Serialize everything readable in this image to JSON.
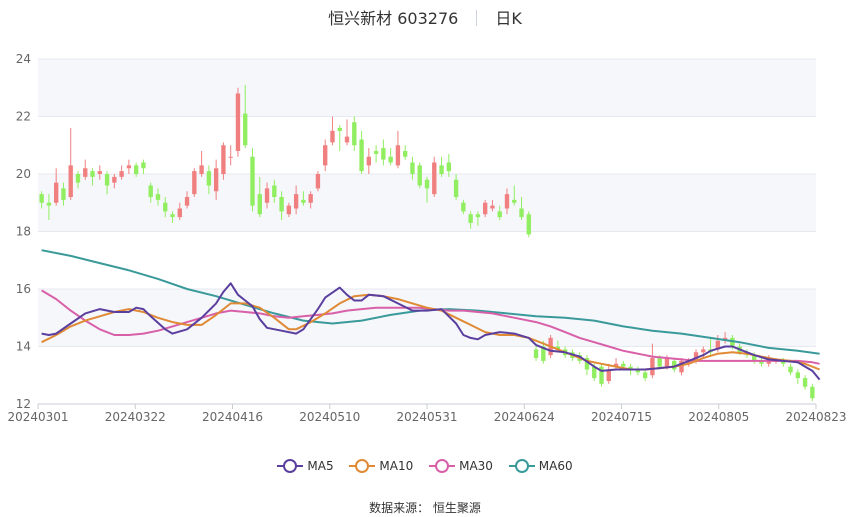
{
  "header": {
    "title": "恒兴新材 603276",
    "period": "日K"
  },
  "source": "数据来源： 恒生聚源",
  "colors": {
    "up": "#f08080",
    "down": "#90ee60",
    "ma5": "#5b3f9e",
    "ma10": "#e08a35",
    "ma30": "#d860a8",
    "ma60": "#3a9a9a",
    "grid": "#e6e9f0",
    "band": "#f5f7fb"
  },
  "chart_data": {
    "type": "candlestick",
    "ylim": [
      12,
      24
    ],
    "yticks": [
      12,
      14,
      16,
      18,
      20,
      22,
      24
    ],
    "xlabels": [
      "20240301",
      "20240322",
      "20240416",
      "20240510",
      "20240531",
      "20240624",
      "20240715",
      "20240805",
      "20240823"
    ],
    "legend": [
      "MA5",
      "MA10",
      "MA30",
      "MA60"
    ],
    "candles": [
      [
        19.3,
        19.0,
        19.4,
        18.8
      ],
      [
        19.0,
        18.9,
        19.3,
        18.4
      ],
      [
        19.0,
        19.7,
        20.2,
        18.9
      ],
      [
        19.5,
        19.1,
        19.7,
        18.9
      ],
      [
        19.2,
        20.3,
        21.6,
        19.1
      ],
      [
        20.0,
        19.7,
        20.1,
        19.5
      ],
      [
        19.9,
        20.2,
        20.5,
        19.8
      ],
      [
        20.1,
        19.9,
        20.2,
        19.6
      ],
      [
        20.0,
        20.1,
        20.3,
        19.8
      ],
      [
        20.0,
        19.6,
        20.1,
        19.3
      ],
      [
        19.7,
        19.9,
        20.0,
        19.5
      ],
      [
        19.9,
        20.1,
        20.3,
        19.8
      ],
      [
        20.2,
        20.3,
        20.5,
        20.0
      ],
      [
        20.3,
        20.0,
        20.4,
        19.9
      ],
      [
        20.4,
        20.2,
        20.5,
        20.0
      ],
      [
        19.6,
        19.2,
        19.7,
        19.0
      ],
      [
        19.3,
        19.1,
        19.5,
        18.9
      ],
      [
        19.0,
        18.7,
        19.2,
        18.5
      ],
      [
        18.6,
        18.5,
        18.7,
        18.3
      ],
      [
        18.5,
        18.8,
        19.0,
        18.4
      ],
      [
        18.9,
        19.2,
        19.4,
        18.8
      ],
      [
        19.3,
        20.1,
        20.2,
        19.2
      ],
      [
        20.0,
        20.3,
        20.8,
        19.9
      ],
      [
        20.1,
        19.6,
        20.3,
        19.3
      ],
      [
        19.4,
        20.2,
        20.5,
        19.1
      ],
      [
        20.0,
        21.0,
        21.1,
        19.8
      ],
      [
        20.6,
        20.6,
        21.0,
        20.3
      ],
      [
        20.8,
        22.8,
        23.0,
        20.6
      ],
      [
        22.1,
        21.0,
        23.1,
        20.9
      ],
      [
        20.6,
        18.9,
        20.9,
        18.7
      ],
      [
        19.3,
        18.6,
        19.9,
        18.5
      ],
      [
        19.0,
        19.5,
        19.7,
        18.8
      ],
      [
        19.6,
        19.2,
        19.8,
        19.0
      ],
      [
        19.2,
        18.7,
        19.4,
        18.4
      ],
      [
        18.6,
        18.9,
        19.0,
        18.5
      ],
      [
        18.8,
        19.3,
        19.6,
        18.6
      ],
      [
        19.1,
        19.0,
        19.4,
        18.9
      ],
      [
        19.0,
        19.3,
        19.4,
        18.8
      ],
      [
        19.5,
        20.0,
        20.1,
        19.4
      ],
      [
        20.3,
        21.0,
        21.2,
        20.1
      ],
      [
        21.1,
        21.5,
        22.0,
        21.0
      ],
      [
        21.6,
        21.5,
        21.7,
        20.8
      ],
      [
        21.1,
        21.3,
        21.9,
        21.0
      ],
      [
        21.8,
        21.0,
        22.0,
        20.8
      ],
      [
        21.2,
        20.1,
        21.5,
        20.0
      ],
      [
        20.3,
        20.6,
        20.9,
        20.0
      ],
      [
        20.8,
        20.7,
        21.0,
        20.4
      ],
      [
        20.9,
        20.5,
        21.2,
        20.3
      ],
      [
        20.6,
        20.4,
        20.9,
        20.3
      ],
      [
        20.3,
        21.0,
        21.5,
        20.2
      ],
      [
        20.8,
        20.6,
        21.0,
        20.5
      ],
      [
        20.4,
        20.0,
        20.6,
        19.8
      ],
      [
        20.3,
        19.6,
        20.4,
        19.5
      ],
      [
        19.8,
        19.5,
        19.9,
        19.0
      ],
      [
        19.3,
        20.4,
        20.6,
        19.2
      ],
      [
        20.3,
        20.0,
        20.6,
        19.9
      ],
      [
        20.4,
        20.1,
        20.7,
        19.9
      ],
      [
        19.8,
        19.2,
        20.0,
        19.1
      ],
      [
        19.0,
        18.7,
        19.1,
        18.6
      ],
      [
        18.6,
        18.3,
        18.7,
        18.1
      ],
      [
        18.6,
        18.5,
        18.7,
        18.2
      ],
      [
        18.6,
        19.0,
        19.1,
        18.5
      ],
      [
        18.8,
        18.9,
        19.1,
        18.7
      ],
      [
        18.7,
        18.5,
        18.9,
        18.4
      ],
      [
        18.8,
        19.3,
        19.5,
        18.6
      ],
      [
        19.1,
        19.0,
        19.6,
        18.9
      ],
      [
        18.8,
        18.5,
        19.2,
        18.4
      ],
      [
        18.6,
        17.9,
        18.7,
        17.8
      ],
      [
        13.9,
        13.6,
        14.1,
        13.5
      ],
      [
        14.0,
        13.5,
        14.2,
        13.4
      ],
      [
        13.7,
        14.3,
        14.4,
        13.6
      ],
      [
        14.0,
        13.9,
        14.2,
        13.8
      ],
      [
        13.9,
        13.7,
        14.0,
        13.6
      ],
      [
        13.8,
        13.6,
        13.9,
        13.5
      ],
      [
        13.7,
        13.5,
        13.8,
        13.4
      ],
      [
        13.6,
        13.2,
        13.7,
        13.0
      ],
      [
        13.3,
        12.9,
        13.4,
        12.8
      ],
      [
        13.3,
        12.7,
        13.4,
        12.6
      ],
      [
        12.8,
        13.2,
        13.4,
        12.7
      ],
      [
        13.3,
        13.4,
        13.6,
        13.2
      ],
      [
        13.4,
        13.3,
        13.5,
        13.2
      ],
      [
        13.3,
        13.2,
        13.4,
        13.0
      ],
      [
        13.2,
        13.1,
        13.3,
        13.0
      ],
      [
        13.1,
        12.9,
        13.2,
        12.8
      ],
      [
        13.0,
        13.6,
        14.1,
        12.9
      ],
      [
        13.6,
        13.3,
        13.7,
        13.2
      ],
      [
        13.3,
        13.6,
        13.7,
        13.2
      ],
      [
        13.5,
        13.2,
        13.6,
        13.1
      ],
      [
        13.1,
        13.5,
        13.6,
        13.0
      ],
      [
        13.4,
        13.5,
        13.6,
        13.3
      ],
      [
        13.5,
        13.8,
        13.9,
        13.4
      ],
      [
        13.8,
        13.9,
        14.0,
        13.6
      ],
      [
        13.9,
        13.8,
        14.3,
        13.7
      ],
      [
        13.9,
        14.2,
        14.4,
        13.8
      ],
      [
        14.2,
        14.3,
        14.5,
        14.1
      ],
      [
        14.3,
        14.0,
        14.4,
        13.9
      ],
      [
        14.0,
        13.8,
        14.1,
        13.7
      ],
      [
        13.8,
        13.7,
        13.9,
        13.6
      ],
      [
        13.7,
        13.5,
        13.8,
        13.4
      ],
      [
        13.5,
        13.4,
        13.6,
        13.3
      ],
      [
        13.4,
        13.6,
        13.7,
        13.3
      ],
      [
        13.5,
        13.5,
        13.6,
        13.4
      ],
      [
        13.5,
        13.4,
        13.6,
        13.3
      ],
      [
        13.3,
        13.1,
        13.4,
        13.0
      ],
      [
        13.1,
        12.9,
        13.2,
        12.7
      ],
      [
        12.9,
        12.6,
        13.0,
        12.5
      ],
      [
        12.6,
        12.2,
        12.7,
        12.1
      ]
    ],
    "ma5": [
      [
        0,
        14.45
      ],
      [
        1,
        14.4
      ],
      [
        2,
        14.45
      ],
      [
        4,
        14.8
      ],
      [
        6,
        15.15
      ],
      [
        8,
        15.3
      ],
      [
        10,
        15.2
      ],
      [
        12,
        15.2
      ],
      [
        13,
        15.35
      ],
      [
        14,
        15.3
      ],
      [
        15,
        15.05
      ],
      [
        17,
        14.6
      ],
      [
        18,
        14.45
      ],
      [
        20,
        14.6
      ],
      [
        22,
        15.0
      ],
      [
        24,
        15.5
      ],
      [
        25,
        15.9
      ],
      [
        26,
        16.2
      ],
      [
        27,
        15.8
      ],
      [
        28,
        15.6
      ],
      [
        29,
        15.4
      ],
      [
        30,
        14.95
      ],
      [
        31,
        14.65
      ],
      [
        33,
        14.55
      ],
      [
        35,
        14.45
      ],
      [
        36,
        14.6
      ],
      [
        38,
        15.3
      ],
      [
        39,
        15.7
      ],
      [
        41,
        16.05
      ],
      [
        42,
        15.8
      ],
      [
        43,
        15.6
      ],
      [
        44,
        15.6
      ],
      [
        45,
        15.8
      ],
      [
        47,
        15.75
      ],
      [
        49,
        15.5
      ],
      [
        51,
        15.25
      ],
      [
        53,
        15.25
      ],
      [
        55,
        15.3
      ],
      [
        57,
        14.8
      ],
      [
        58,
        14.4
      ],
      [
        59,
        14.3
      ],
      [
        60,
        14.25
      ],
      [
        61,
        14.4
      ],
      [
        63,
        14.5
      ],
      [
        65,
        14.45
      ],
      [
        67,
        14.3
      ],
      [
        68,
        14.05
      ],
      [
        69,
        13.95
      ],
      [
        70,
        13.85
      ],
      [
        72,
        13.8
      ],
      [
        74,
        13.65
      ],
      [
        76,
        13.3
      ],
      [
        77,
        13.15
      ],
      [
        79,
        13.2
      ],
      [
        81,
        13.2
      ],
      [
        83,
        13.2
      ],
      [
        85,
        13.25
      ],
      [
        87,
        13.3
      ],
      [
        89,
        13.5
      ],
      [
        91,
        13.7
      ],
      [
        92,
        13.85
      ],
      [
        94,
        14.0
      ],
      [
        95,
        14.0
      ],
      [
        96,
        13.9
      ],
      [
        98,
        13.7
      ],
      [
        100,
        13.55
      ],
      [
        102,
        13.5
      ],
      [
        104,
        13.45
      ],
      [
        105,
        13.3
      ],
      [
        106,
        13.15
      ],
      [
        107,
        12.85
      ]
    ],
    "ma10": [
      [
        0,
        14.15
      ],
      [
        2,
        14.4
      ],
      [
        4,
        14.7
      ],
      [
        6,
        14.9
      ],
      [
        8,
        15.05
      ],
      [
        10,
        15.2
      ],
      [
        12,
        15.3
      ],
      [
        14,
        15.2
      ],
      [
        16,
        15.0
      ],
      [
        18,
        14.85
      ],
      [
        20,
        14.75
      ],
      [
        22,
        14.75
      ],
      [
        24,
        15.1
      ],
      [
        26,
        15.5
      ],
      [
        28,
        15.5
      ],
      [
        30,
        15.35
      ],
      [
        32,
        15.0
      ],
      [
        34,
        14.6
      ],
      [
        35,
        14.6
      ],
      [
        37,
        14.85
      ],
      [
        39,
        15.15
      ],
      [
        41,
        15.5
      ],
      [
        43,
        15.75
      ],
      [
        45,
        15.8
      ],
      [
        47,
        15.75
      ],
      [
        49,
        15.65
      ],
      [
        51,
        15.5
      ],
      [
        53,
        15.35
      ],
      [
        55,
        15.25
      ],
      [
        57,
        15.0
      ],
      [
        59,
        14.75
      ],
      [
        61,
        14.5
      ],
      [
        63,
        14.4
      ],
      [
        65,
        14.4
      ],
      [
        67,
        14.3
      ],
      [
        69,
        14.1
      ],
      [
        71,
        13.9
      ],
      [
        73,
        13.7
      ],
      [
        75,
        13.5
      ],
      [
        77,
        13.4
      ],
      [
        79,
        13.3
      ],
      [
        81,
        13.2
      ],
      [
        83,
        13.2
      ],
      [
        85,
        13.25
      ],
      [
        87,
        13.3
      ],
      [
        89,
        13.4
      ],
      [
        91,
        13.6
      ],
      [
        93,
        13.75
      ],
      [
        95,
        13.8
      ],
      [
        97,
        13.75
      ],
      [
        99,
        13.65
      ],
      [
        101,
        13.55
      ],
      [
        103,
        13.5
      ],
      [
        105,
        13.4
      ],
      [
        107,
        13.2
      ]
    ],
    "ma30": [
      [
        0,
        15.95
      ],
      [
        2,
        15.65
      ],
      [
        4,
        15.25
      ],
      [
        6,
        14.9
      ],
      [
        8,
        14.6
      ],
      [
        10,
        14.4
      ],
      [
        12,
        14.4
      ],
      [
        14,
        14.45
      ],
      [
        16,
        14.55
      ],
      [
        18,
        14.7
      ],
      [
        20,
        14.85
      ],
      [
        22,
        15.0
      ],
      [
        24,
        15.15
      ],
      [
        26,
        15.25
      ],
      [
        28,
        15.2
      ],
      [
        30,
        15.15
      ],
      [
        32,
        15.05
      ],
      [
        34,
        15.0
      ],
      [
        36,
        15.05
      ],
      [
        38,
        15.1
      ],
      [
        40,
        15.15
      ],
      [
        42,
        15.25
      ],
      [
        44,
        15.3
      ],
      [
        46,
        15.35
      ],
      [
        48,
        15.35
      ],
      [
        50,
        15.35
      ],
      [
        52,
        15.35
      ],
      [
        54,
        15.3
      ],
      [
        56,
        15.25
      ],
      [
        58,
        15.25
      ],
      [
        60,
        15.2
      ],
      [
        62,
        15.15
      ],
      [
        64,
        15.05
      ],
      [
        66,
        14.95
      ],
      [
        68,
        14.85
      ],
      [
        70,
        14.7
      ],
      [
        72,
        14.5
      ],
      [
        74,
        14.3
      ],
      [
        76,
        14.15
      ],
      [
        78,
        14.0
      ],
      [
        80,
        13.85
      ],
      [
        82,
        13.75
      ],
      [
        84,
        13.65
      ],
      [
        86,
        13.6
      ],
      [
        88,
        13.55
      ],
      [
        90,
        13.5
      ],
      [
        92,
        13.5
      ],
      [
        94,
        13.5
      ],
      [
        96,
        13.5
      ],
      [
        98,
        13.5
      ],
      [
        100,
        13.5
      ],
      [
        102,
        13.5
      ],
      [
        104,
        13.5
      ],
      [
        106,
        13.45
      ],
      [
        107,
        13.4
      ]
    ],
    "ma60": [
      [
        0,
        17.35
      ],
      [
        4,
        17.15
      ],
      [
        8,
        16.9
      ],
      [
        12,
        16.65
      ],
      [
        16,
        16.35
      ],
      [
        20,
        16.0
      ],
      [
        24,
        15.75
      ],
      [
        28,
        15.45
      ],
      [
        32,
        15.15
      ],
      [
        36,
        14.9
      ],
      [
        40,
        14.8
      ],
      [
        44,
        14.9
      ],
      [
        48,
        15.1
      ],
      [
        52,
        15.25
      ],
      [
        56,
        15.3
      ],
      [
        60,
        15.25
      ],
      [
        64,
        15.15
      ],
      [
        68,
        15.05
      ],
      [
        72,
        15.0
      ],
      [
        76,
        14.9
      ],
      [
        80,
        14.7
      ],
      [
        84,
        14.55
      ],
      [
        88,
        14.45
      ],
      [
        92,
        14.3
      ],
      [
        96,
        14.15
      ],
      [
        100,
        13.95
      ],
      [
        104,
        13.85
      ],
      [
        107,
        13.75
      ]
    ]
  }
}
